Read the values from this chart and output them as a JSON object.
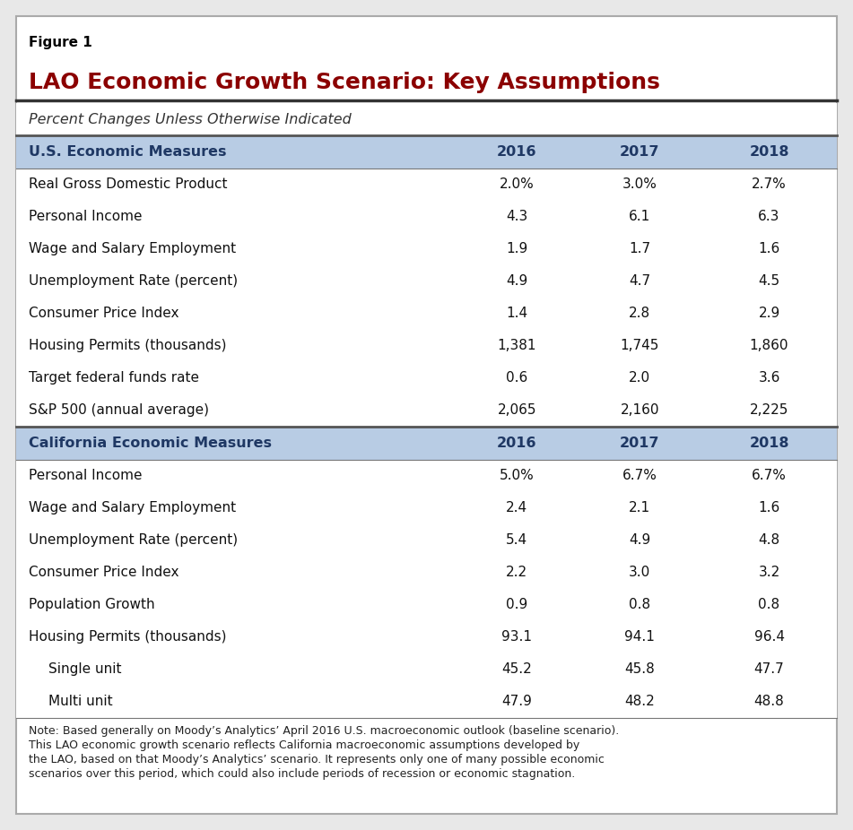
{
  "figure_label": "Figure 1",
  "title": "LAO Economic Growth Scenario: Key Assumptions",
  "subtitle": "Percent Changes Unless Otherwise Indicated",
  "columns": [
    "2016",
    "2017",
    "2018"
  ],
  "us_header": "U.S. Economic Measures",
  "us_rows": [
    [
      "Real Gross Domestic Product",
      "2.0%",
      "3.0%",
      "2.7%"
    ],
    [
      "Personal Income",
      "4.3",
      "6.1",
      "6.3"
    ],
    [
      "Wage and Salary Employment",
      "1.9",
      "1.7",
      "1.6"
    ],
    [
      "Unemployment Rate (percent)",
      "4.9",
      "4.7",
      "4.5"
    ],
    [
      "Consumer Price Index",
      "1.4",
      "2.8",
      "2.9"
    ],
    [
      "Housing Permits (thousands)",
      "1,381",
      "1,745",
      "1,860"
    ],
    [
      "Target federal funds rate",
      "0.6",
      "2.0",
      "3.6"
    ],
    [
      "S&P 500 (annual average)",
      "2,065",
      "2,160",
      "2,225"
    ]
  ],
  "ca_header": "California Economic Measures",
  "ca_rows": [
    [
      "Personal Income",
      "5.0%",
      "6.7%",
      "6.7%"
    ],
    [
      "Wage and Salary Employment",
      "2.4",
      "2.1",
      "1.6"
    ],
    [
      "Unemployment Rate (percent)",
      "5.4",
      "4.9",
      "4.8"
    ],
    [
      "Consumer Price Index",
      "2.2",
      "3.0",
      "3.2"
    ],
    [
      "Population Growth",
      "0.9",
      "0.8",
      "0.8"
    ],
    [
      "Housing Permits (thousands)",
      "93.1",
      "94.1",
      "96.4"
    ],
    [
      "Single unit",
      "45.2",
      "45.8",
      "47.7",
      "indent"
    ],
    [
      "Multi unit",
      "47.9",
      "48.2",
      "48.8",
      "indent"
    ]
  ],
  "note": "Note: Based generally on Moody’s Analytics’ April 2016 U.S. macroeconomic outlook (baseline scenario).\nThis LAO economic growth scenario reflects California macroeconomic assumptions developed by\nthe LAO, based on that Moody’s Analytics’ scenario. It represents only one of many possible economic\nscenarios over this period, which could also include periods of recession or economic stagnation.",
  "header_bg": "#b8cce4",
  "header_text": "#1f3864",
  "title_color": "#8b0000",
  "figure_label_color": "#000000",
  "border_color": "#4472c4",
  "outer_border_color": "#aaaaaa",
  "fig_bg": "#e8e8e8",
  "white": "#ffffff",
  "fig_label_fontsize": 11,
  "title_fontsize": 18,
  "subtitle_fontsize": 11.5,
  "header_fontsize": 11.5,
  "data_fontsize": 11,
  "note_fontsize": 9
}
